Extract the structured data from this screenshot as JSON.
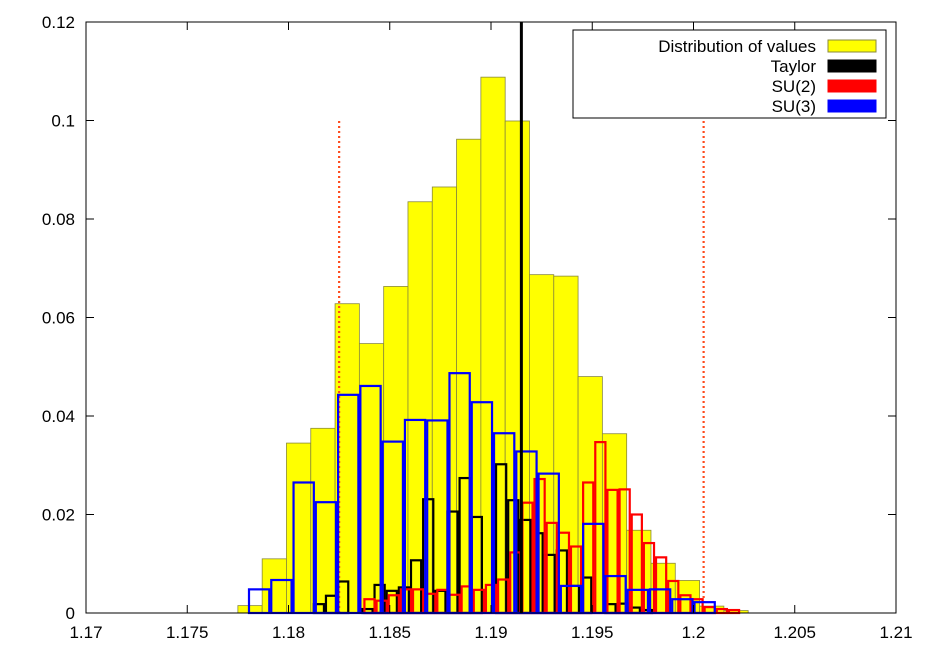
{
  "chart_data": {
    "type": "bar",
    "title": "",
    "xlabel": "",
    "ylabel": "",
    "xlim": [
      1.17,
      1.21
    ],
    "ylim": [
      0,
      0.12
    ],
    "x_ticks": [
      "1.17",
      "1.175",
      "1.18",
      "1.185",
      "1.19",
      "1.195",
      "1.2",
      "1.205",
      "1.21"
    ],
    "y_ticks": [
      "0",
      "0.02",
      "0.04",
      "0.06",
      "0.08",
      "0.1",
      "0.12"
    ],
    "grid": false,
    "legend_position": "top-right",
    "series": [
      {
        "name": "Distribution of values",
        "style": "filled",
        "color": "#ffff00",
        "edge": "#8a8a3a",
        "bin_left": 1.1775,
        "bin_width": 0.0012,
        "values": [
          0.0015,
          0.011,
          0.0345,
          0.0375,
          0.0628,
          0.0547,
          0.0663,
          0.0835,
          0.0865,
          0.0962,
          0.1088,
          0.0999,
          0.0687,
          0.0684,
          0.048,
          0.0364,
          0.0168,
          0.0101,
          0.0066,
          0.0014,
          0.0005
        ]
      },
      {
        "name": "Taylor",
        "style": "outline",
        "color": "#000000",
        "bin_left": 1.1812,
        "bin_width": 0.0006,
        "values": [
          0.0018,
          0.0035,
          0.0064,
          0,
          0.0008,
          0.0057,
          0.0045,
          0.0052,
          0.0107,
          0.0231,
          0.0045,
          0.0206,
          0.0274,
          0.0195,
          0,
          0.0302,
          0.0229,
          0.0189,
          0.0162,
          0.0118,
          0.0127,
          0.0055,
          0.0072,
          0,
          0.0018,
          0.0019,
          0.0011,
          0.0006
        ]
      },
      {
        "name": "SU(2)",
        "style": "outline",
        "color": "#ff0000",
        "bin_left": 1.1837,
        "bin_width": 0.0006,
        "values": [
          0.0028,
          0.0025,
          0.0036,
          0.0048,
          0.0048,
          0.0039,
          0.0047,
          0.0037,
          0.0054,
          0.0047,
          0.0057,
          0.0068,
          0.0123,
          0.0224,
          0.0272,
          0.0183,
          0.0163,
          0.0135,
          0.0265,
          0.0347,
          0.025,
          0.0251,
          0.02,
          0.0142,
          0.0113,
          0.0065,
          0.0036,
          0.0028,
          0.0012,
          0.0008,
          0.0006
        ]
      },
      {
        "name": "SU(3)",
        "style": "outline",
        "color": "#0000ff",
        "bin_left": 1.178,
        "bin_width": 0.0011,
        "values": [
          0.0048,
          0.0067,
          0.0265,
          0.0225,
          0.0443,
          0.0461,
          0.0348,
          0.0392,
          0.0391,
          0.0487,
          0.0428,
          0.0365,
          0.0328,
          0.0283,
          0.0055,
          0.0181,
          0.0075,
          0.0047,
          0.0048,
          0.0028,
          0.0022
        ]
      }
    ],
    "reference_lines": [
      {
        "x": 1.1915,
        "y_to": 0.12,
        "style": "solid",
        "color": "#000000"
      },
      {
        "x": 1.1825,
        "y_to": 0.1,
        "style": "dotted",
        "color": "#ff4a1c"
      },
      {
        "x": 1.2005,
        "y_to": 0.1,
        "style": "dotted",
        "color": "#ff4a1c"
      }
    ]
  }
}
